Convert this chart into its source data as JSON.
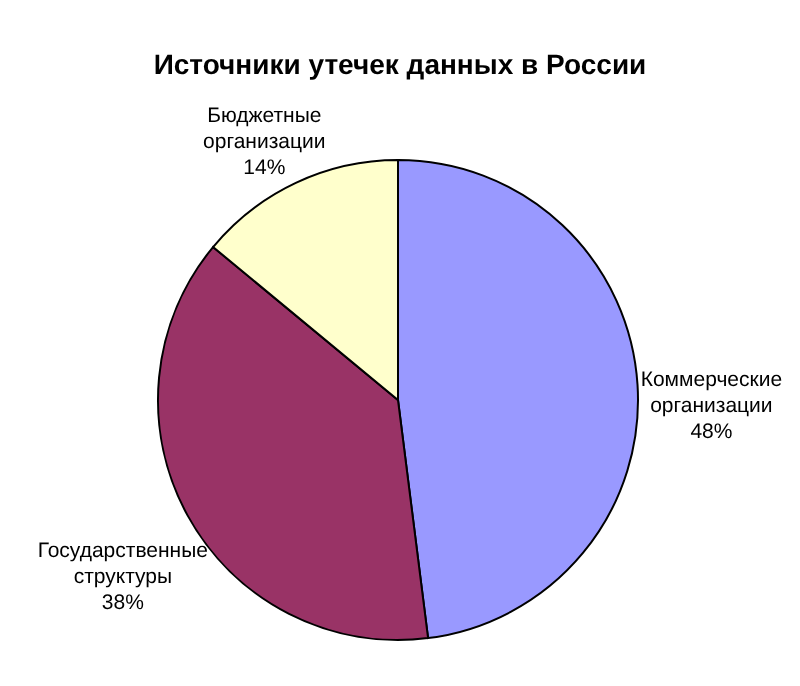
{
  "chart_data": {
    "type": "pie",
    "title": "Источники утечек данных в России",
    "categories": [
      "Коммерческие организации",
      "Государственные структуры",
      "Бюджетные организации"
    ],
    "values": [
      48,
      38,
      14
    ],
    "value_labels": [
      "48%",
      "38%",
      "14%"
    ],
    "colors": [
      "#9999ff",
      "#993366",
      "#ffffcc"
    ],
    "legend": false
  }
}
